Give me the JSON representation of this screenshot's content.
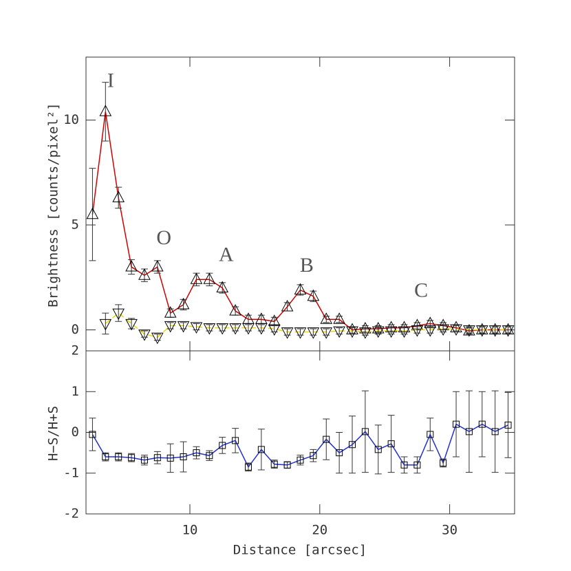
{
  "chart_data": [
    {
      "type": "line",
      "ylabel": "Brightness [counts/pixel²]",
      "annotations": [
        "I",
        "O",
        "A",
        "B",
        "C"
      ],
      "x": [
        2.5,
        3.5,
        4.5,
        5.5,
        6.5,
        7.5,
        8.5,
        9.5,
        10.5,
        11.5,
        12.5,
        13.5,
        14.5,
        15.5,
        16.5,
        17.5,
        18.5,
        19.5,
        20.5,
        21.5,
        22.5,
        23.5,
        24.5,
        25.5,
        26.5,
        27.5,
        28.5,
        29.5,
        30.5,
        31.5,
        32.5,
        33.5,
        34.5
      ],
      "xlim": [
        2,
        35
      ],
      "ylim": [
        -1,
        13
      ],
      "yticks": [
        0,
        5,
        10
      ],
      "series": [
        {
          "marker": "triangle-up",
          "color": "#000000",
          "line_color": "#d00000",
          "dashed": false,
          "values": [
            5.5,
            10.4,
            6.3,
            3.0,
            2.6,
            3.0,
            0.8,
            1.2,
            2.4,
            2.4,
            2.0,
            0.9,
            0.5,
            0.5,
            0.4,
            1.1,
            1.9,
            1.6,
            0.5,
            0.5,
            0.0,
            0.05,
            0.05,
            0.1,
            0.1,
            0.2,
            0.3,
            0.2,
            0.1,
            -0.05,
            0.0,
            0.0,
            0.0
          ],
          "errors": [
            2.2,
            1.4,
            0.5,
            0.35,
            0.3,
            0.3,
            0.2,
            0.25,
            0.3,
            0.3,
            0.25,
            0.2,
            0.2,
            0.2,
            0.2,
            0.2,
            0.25,
            0.25,
            0.15,
            0.15,
            0.15,
            0.15,
            0.15,
            0.15,
            0.15,
            0.15,
            0.15,
            0.15,
            0.15,
            0.15,
            0.15,
            0.15,
            0.15
          ]
        },
        {
          "marker": "triangle-down",
          "color": "#000000",
          "line_color": "#e8d800",
          "dashed": true,
          "values": [
            null,
            0.3,
            0.8,
            0.3,
            -0.2,
            -0.35,
            0.2,
            0.2,
            0.15,
            0.1,
            0.1,
            0.1,
            0.1,
            0.1,
            0.05,
            -0.1,
            -0.1,
            -0.1,
            -0.1,
            -0.05,
            -0.05,
            -0.1,
            -0.05,
            -0.05,
            -0.05,
            0,
            0,
            0.05,
            0.05,
            0,
            0,
            0,
            0
          ],
          "errors": [
            null,
            0.5,
            0.4,
            0.25,
            0.15,
            0.15,
            0.15,
            0.15,
            0.15,
            0.15,
            0.15,
            0.15,
            0.15,
            0.15,
            0.15,
            0.15,
            0.15,
            0.15,
            0.15,
            0.15,
            0.15,
            0.15,
            0.15,
            0.15,
            0.15,
            0.15,
            0.15,
            0.15,
            0.15,
            0.15,
            0.15,
            0.15,
            0.15
          ]
        }
      ]
    },
    {
      "type": "line",
      "xlabel": "Distance [arcsec]",
      "ylabel": "H−S/H+S",
      "x": [
        2.5,
        3.5,
        4.5,
        5.5,
        6.5,
        7.5,
        8.5,
        9.5,
        10.5,
        11.5,
        12.5,
        13.5,
        14.5,
        15.5,
        16.5,
        17.5,
        18.5,
        19.5,
        20.5,
        21.5,
        22.5,
        23.5,
        24.5,
        25.5,
        26.5,
        27.5,
        28.5,
        29.5,
        30.5,
        31.5,
        32.5,
        33.5,
        34.5
      ],
      "xlim": [
        2,
        35
      ],
      "xticks": [
        10,
        20,
        30
      ],
      "ylim": [
        -2,
        2
      ],
      "yticks": [
        -2,
        -1,
        0,
        1,
        2
      ],
      "series": [
        {
          "marker": "square",
          "color": "#000000",
          "line_color": "#2030d0",
          "dashed": false,
          "values": [
            -0.05,
            -0.6,
            -0.6,
            -0.62,
            -0.68,
            -0.62,
            -0.63,
            -0.6,
            -0.5,
            -0.57,
            -0.32,
            -0.2,
            -0.85,
            -0.42,
            -0.78,
            -0.8,
            -0.68,
            -0.57,
            -0.17,
            -0.5,
            -0.3,
            0.02,
            -0.42,
            -0.28,
            -0.8,
            -0.8,
            -0.05,
            -0.75,
            0.2,
            0.02,
            0.2,
            0.02,
            0.18
          ],
          "errors": [
            0.4,
            0.1,
            0.1,
            0.1,
            0.12,
            0.15,
            0.35,
            0.37,
            0.15,
            0.12,
            0.2,
            0.3,
            0.1,
            0.5,
            0.1,
            0.08,
            0.12,
            0.15,
            0.5,
            0.5,
            0.7,
            1.0,
            0.6,
            0.7,
            0.2,
            0.2,
            0.4,
            0.1,
            0.8,
            1.0,
            0.8,
            1.0,
            0.8
          ]
        }
      ]
    }
  ]
}
